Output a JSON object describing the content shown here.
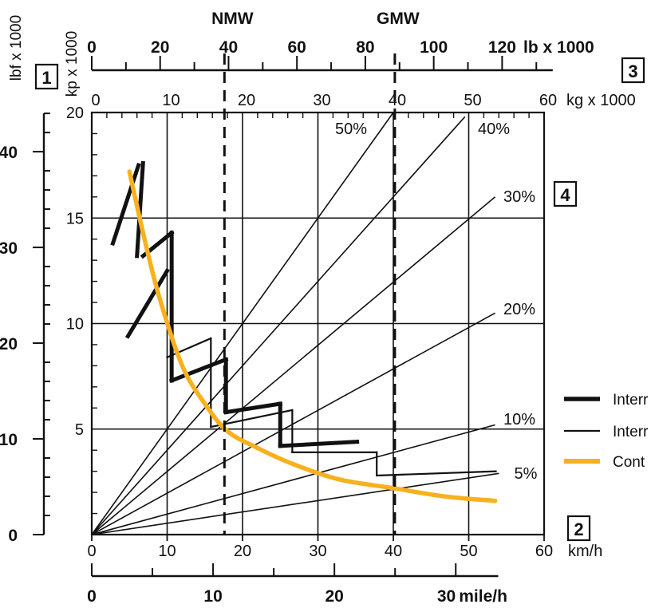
{
  "chart_data": {
    "type": "line",
    "title": "",
    "axes": {
      "left_outer": {
        "label": "lbf x 1000",
        "ticks": [
          "0",
          "10",
          "20",
          "30",
          "40"
        ],
        "range": [
          0,
          44
        ]
      },
      "left_inner": {
        "label": "kp x 1000",
        "ticks": [
          "5",
          "10",
          "15",
          "20"
        ],
        "range": [
          0,
          20
        ]
      },
      "top_outer": {
        "label": "lb x 1000",
        "ticks": [
          "0",
          "20",
          "40",
          "60",
          "80",
          "100",
          "120"
        ],
        "range": [
          0,
          132
        ]
      },
      "top_inner": {
        "label": "kg x 1000",
        "ticks": [
          "0",
          "10",
          "20",
          "30",
          "40",
          "50",
          "60"
        ],
        "range": [
          0,
          60
        ]
      },
      "bottom_inner": {
        "label": "km/h",
        "ticks": [
          "0",
          "10",
          "20",
          "30",
          "40",
          "50",
          "60"
        ],
        "range": [
          0,
          60
        ]
      },
      "bottom_outer": {
        "label": "mile/h",
        "ticks": [
          "0",
          "10",
          "20",
          "30"
        ],
        "range": [
          0,
          37.3
        ]
      }
    },
    "callouts": [
      "1",
      "2",
      "3",
      "4"
    ],
    "vertical_markers": [
      {
        "label": "NMW",
        "kg_x1000": 17.6
      },
      {
        "label": "GMW",
        "kg_x1000": 40.2
      }
    ],
    "grade_lines": [
      {
        "label": "50%",
        "end_x": 40,
        "end_y": 20
      },
      {
        "label": "40%",
        "end_x": 49.5,
        "end_y": 19.8
      },
      {
        "label": "30%",
        "end_x": 53.5,
        "end_y": 16
      },
      {
        "label": "20%",
        "end_x": 53.5,
        "end_y": 10.5
      },
      {
        "label": "10%",
        "end_x": 53.5,
        "end_y": 5.2
      },
      {
        "label": "5%",
        "end_x": 54,
        "end_y": 2.9
      }
    ],
    "series": [
      {
        "name": "Intermittent",
        "style": "thick",
        "segments": [
          [
            [
              2.8,
              13.8
            ],
            [
              6.2,
              17.5
            ]
          ],
          [
            [
              6.0,
              13.2
            ],
            [
              6.8,
              17.6
            ]
          ],
          [
            [
              6.8,
              13.2
            ],
            [
              10.6,
              14.3
            ]
          ],
          [
            [
              4.8,
              9.4
            ],
            [
              10.0,
              12.5
            ]
          ],
          [
            [
              10.6,
              14.3
            ],
            [
              10.6,
              7.3
            ]
          ],
          [
            [
              10.6,
              7.3
            ],
            [
              17.8,
              8.3
            ]
          ],
          [
            [
              17.8,
              8.3
            ],
            [
              17.8,
              5.8
            ]
          ],
          [
            [
              17.8,
              5.8
            ],
            [
              25.0,
              6.2
            ]
          ],
          [
            [
              25.0,
              6.2
            ],
            [
              25.0,
              4.2
            ]
          ],
          [
            [
              25.0,
              4.2
            ],
            [
              35.2,
              4.4
            ]
          ]
        ]
      },
      {
        "name": "Intermittent",
        "style": "thin",
        "segments": [
          [
            [
              10.0,
              8.4
            ],
            [
              15.8,
              9.3
            ]
          ],
          [
            [
              15.8,
              9.3
            ],
            [
              15.8,
              5.1
            ]
          ],
          [
            [
              15.8,
              5.1
            ],
            [
              26.6,
              5.9
            ]
          ],
          [
            [
              26.6,
              5.9
            ],
            [
              26.6,
              3.9
            ]
          ],
          [
            [
              26.6,
              3.9
            ],
            [
              37.8,
              3.9
            ]
          ],
          [
            [
              37.8,
              3.9
            ],
            [
              37.8,
              2.8
            ]
          ],
          [
            [
              37.8,
              2.8
            ],
            [
              53.6,
              3.0
            ]
          ]
        ]
      },
      {
        "name": "Cont",
        "style": "orange",
        "color": "#F8B11E",
        "points": [
          [
            5.0,
            17.2
          ],
          [
            7.0,
            14.0
          ],
          [
            9.0,
            11.2
          ],
          [
            12.0,
            8.0
          ],
          [
            15.0,
            6.2
          ],
          [
            18.0,
            4.9
          ],
          [
            22.0,
            4.1
          ],
          [
            27.0,
            3.3
          ],
          [
            33.0,
            2.6
          ],
          [
            40.0,
            2.2
          ],
          [
            47.0,
            1.8
          ],
          [
            53.5,
            1.6
          ]
        ]
      }
    ],
    "legend": {
      "position": "right",
      "entries": [
        {
          "text": "Interr",
          "style": "thick"
        },
        {
          "text": "Interr",
          "style": "thin"
        },
        {
          "text": "Cont",
          "style": "orange"
        }
      ]
    },
    "grid": true
  }
}
